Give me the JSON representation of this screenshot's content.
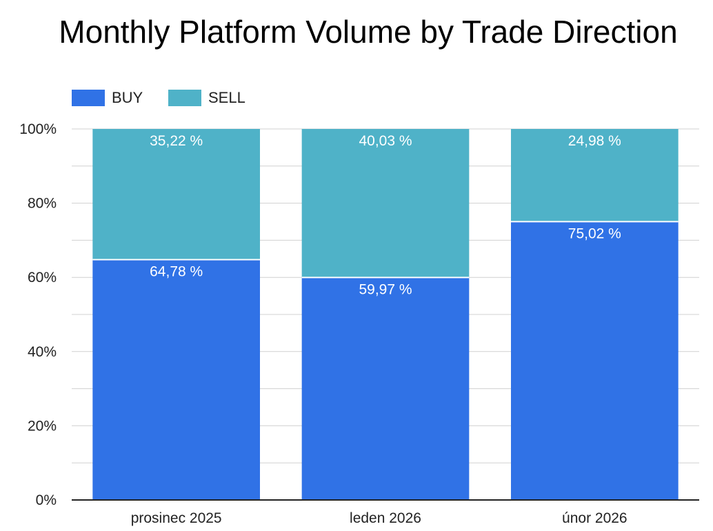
{
  "chart_data": {
    "type": "bar",
    "stacked": true,
    "normalized": true,
    "title": "Monthly Platform Volume by Trade Direction",
    "xlabel": "",
    "ylabel": "",
    "categories": [
      "prosinec 2025",
      "leden 2026",
      "únor 2026"
    ],
    "series": [
      {
        "name": "BUY",
        "color": "#3072e6",
        "values": [
          64.78,
          59.97,
          75.02
        ],
        "labels": [
          "64,78 %",
          "59,97 %",
          "75,02 %"
        ]
      },
      {
        "name": "SELL",
        "color": "#4fb2c8",
        "values": [
          35.22,
          40.03,
          24.98
        ],
        "labels": [
          "35,22 %",
          "40,03 %",
          "24,98 %"
        ]
      }
    ],
    "ylim": [
      0,
      100
    ],
    "yticks": [
      0,
      20,
      40,
      60,
      80,
      100
    ],
    "ytick_labels": [
      "0%",
      "20%",
      "40%",
      "60%",
      "80%",
      "100%"
    ],
    "grid": true,
    "minor_grid": true,
    "legend_position": "top-left"
  }
}
